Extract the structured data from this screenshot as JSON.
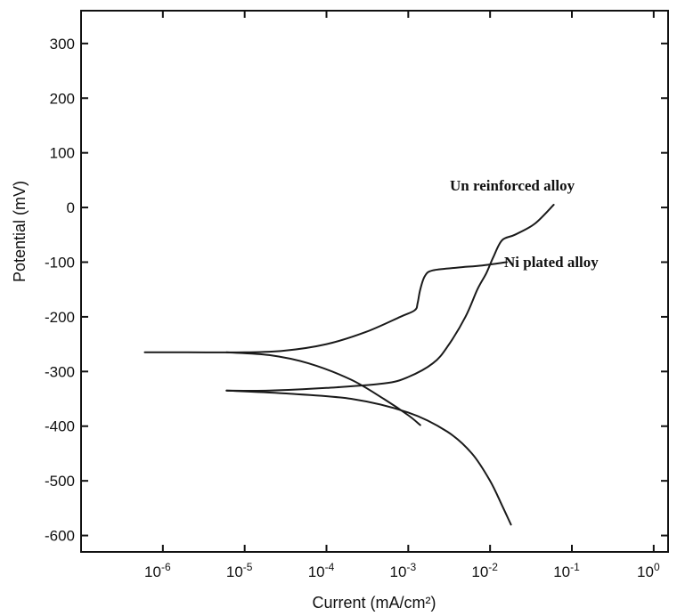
{
  "chart_data": {
    "type": "line",
    "xlabel": "Current (mA/cm²)",
    "ylabel": "Potential (mV)",
    "x_scale": "log",
    "xlim": [
      1e-07,
      1.5
    ],
    "ylim": [
      -630,
      360
    ],
    "x_ticks": [
      {
        "value": 1e-06,
        "base": "10",
        "exp": "-6"
      },
      {
        "value": 1e-05,
        "base": "10",
        "exp": "-5"
      },
      {
        "value": 0.0001,
        "base": "10",
        "exp": "-4"
      },
      {
        "value": 0.001,
        "base": "10",
        "exp": "-3"
      },
      {
        "value": 0.01,
        "base": "10",
        "exp": "-2"
      },
      {
        "value": 0.1,
        "base": "10",
        "exp": "-1"
      },
      {
        "value": 1,
        "base": "10",
        "exp": "0"
      }
    ],
    "y_ticks": [
      300,
      200,
      100,
      0,
      -100,
      -200,
      -300,
      -400,
      -500,
      -600
    ],
    "grid": false,
    "annotations": [
      "Un reinforced alloy",
      "Ni plated alloy"
    ],
    "series": [
      {
        "values": [
          {
            "x": 6e-07,
            "y": -265
          },
          {
            "x": 2e-06,
            "y": -265
          },
          {
            "x": 1e-05,
            "y": -265
          },
          {
            "x": 3e-05,
            "y": -262
          },
          {
            "x": 0.0001,
            "y": -250
          },
          {
            "x": 0.0003,
            "y": -228
          },
          {
            "x": 0.0008,
            "y": -200
          },
          {
            "x": 0.0012,
            "y": -188
          },
          {
            "x": 0.0013,
            "y": -175
          },
          {
            "x": 0.0014,
            "y": -150
          },
          {
            "x": 0.0016,
            "y": -125
          },
          {
            "x": 0.002,
            "y": -115
          },
          {
            "x": 0.004,
            "y": -110
          },
          {
            "x": 0.008,
            "y": -106
          },
          {
            "x": 0.016,
            "y": -100
          }
        ]
      },
      {
        "values": [
          {
            "x": 6e-06,
            "y": -265
          },
          {
            "x": 2e-05,
            "y": -270
          },
          {
            "x": 6e-05,
            "y": -285
          },
          {
            "x": 0.0002,
            "y": -315
          },
          {
            "x": 0.0005,
            "y": -350
          },
          {
            "x": 0.001,
            "y": -380
          },
          {
            "x": 0.0014,
            "y": -398
          }
        ]
      },
      {
        "values": [
          {
            "x": 6e-06,
            "y": -335
          },
          {
            "x": 2e-05,
            "y": -335
          },
          {
            "x": 0.0001,
            "y": -330
          },
          {
            "x": 0.0005,
            "y": -322
          },
          {
            "x": 0.001,
            "y": -310
          },
          {
            "x": 0.002,
            "y": -285
          },
          {
            "x": 0.003,
            "y": -255
          },
          {
            "x": 0.005,
            "y": -200
          },
          {
            "x": 0.007,
            "y": -150
          },
          {
            "x": 0.009,
            "y": -120
          },
          {
            "x": 0.011,
            "y": -90
          },
          {
            "x": 0.014,
            "y": -60
          },
          {
            "x": 0.02,
            "y": -50
          },
          {
            "x": 0.035,
            "y": -30
          },
          {
            "x": 0.06,
            "y": 5
          }
        ]
      },
      {
        "values": [
          {
            "x": 6e-06,
            "y": -335
          },
          {
            "x": 3e-05,
            "y": -340
          },
          {
            "x": 0.0002,
            "y": -350
          },
          {
            "x": 0.001,
            "y": -375
          },
          {
            "x": 0.003,
            "y": -410
          },
          {
            "x": 0.006,
            "y": -450
          },
          {
            "x": 0.01,
            "y": -500
          },
          {
            "x": 0.014,
            "y": -545
          },
          {
            "x": 0.018,
            "y": -580
          }
        ]
      }
    ]
  }
}
